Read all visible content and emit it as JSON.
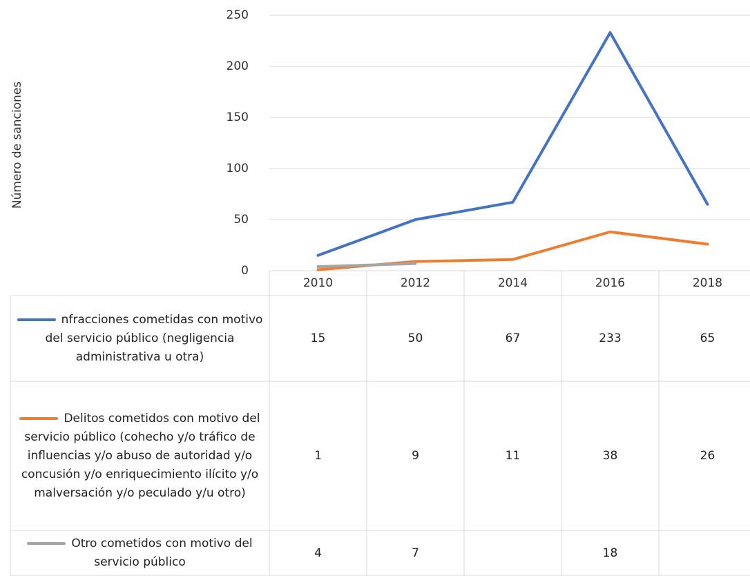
{
  "chart_data": {
    "type": "line",
    "y_label": "Número de sanciones",
    "categories": [
      "2010",
      "2012",
      "2014",
      "2016",
      "2018"
    ],
    "series": [
      {
        "name": "nfracciones cometidas con motivo del servicio público (negligencia administrativa u otra)",
        "color": "#4472c4",
        "values": [
          15,
          50,
          67,
          233,
          65
        ]
      },
      {
        "name": "Delitos cometidos con motivo del servicio público (cohecho y/o tráfico de influencias y/o abuso de autoridad y/o concusión y/o enriquecimiento ilícito y/o malversación y/o peculado y/u otro)",
        "color": "#ed7d31",
        "values": [
          1,
          9,
          11,
          38,
          26
        ]
      },
      {
        "name": "Otro cometidos con motivo del servicio público",
        "color": "#a5a5a5",
        "values": [
          4,
          7,
          null,
          18,
          null
        ]
      }
    ],
    "ylim": [
      0,
      250
    ],
    "yticks": [
      0,
      50,
      100,
      150,
      200,
      250
    ],
    "grid": true
  }
}
